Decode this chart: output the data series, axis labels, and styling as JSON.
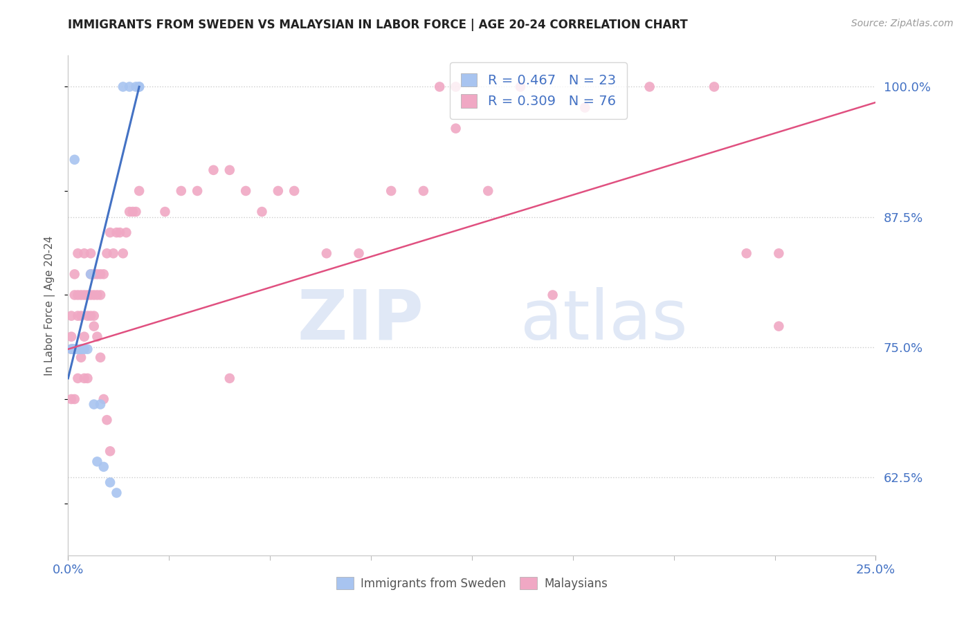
{
  "title": "IMMIGRANTS FROM SWEDEN VS MALAYSIAN IN LABOR FORCE | AGE 20-24 CORRELATION CHART",
  "source": "Source: ZipAtlas.com",
  "ylabel": "In Labor Force | Age 20-24",
  "xlim": [
    0.0,
    0.25
  ],
  "ylim": [
    0.55,
    1.03
  ],
  "yticks": [
    0.625,
    0.75,
    0.875,
    1.0
  ],
  "ytick_labels": [
    "62.5%",
    "75.0%",
    "87.5%",
    "100.0%"
  ],
  "sweden_color": "#a8c4f0",
  "malaysia_color": "#f0a8c4",
  "sweden_line_color": "#4472c4",
  "malaysia_line_color": "#e05080",
  "legend_sweden_text": "R = 0.467   N = 23",
  "legend_malaysia_text": "R = 0.309   N = 76",
  "axis_color": "#4472c4",
  "sweden_x": [
    0.001,
    0.0013,
    0.0015,
    0.0017,
    0.002,
    0.002,
    0.003,
    0.004,
    0.004,
    0.005,
    0.006,
    0.007,
    0.008,
    0.009,
    0.01,
    0.011,
    0.013,
    0.015,
    0.017,
    0.019,
    0.021,
    0.022,
    0.022
  ],
  "sweden_y": [
    0.748,
    0.748,
    0.748,
    0.748,
    0.93,
    0.748,
    0.748,
    0.748,
    0.748,
    0.748,
    0.748,
    0.82,
    0.695,
    0.64,
    0.695,
    0.635,
    0.62,
    0.61,
    1.0,
    1.0,
    1.0,
    1.0,
    1.0
  ],
  "malaysia_x": [
    0.001,
    0.001,
    0.001,
    0.002,
    0.002,
    0.003,
    0.003,
    0.003,
    0.004,
    0.004,
    0.005,
    0.005,
    0.005,
    0.006,
    0.006,
    0.007,
    0.007,
    0.007,
    0.008,
    0.008,
    0.008,
    0.009,
    0.009,
    0.01,
    0.01,
    0.011,
    0.012,
    0.013,
    0.014,
    0.015,
    0.016,
    0.017,
    0.018,
    0.019,
    0.02,
    0.021,
    0.022,
    0.03,
    0.035,
    0.04,
    0.045,
    0.05,
    0.055,
    0.06,
    0.065,
    0.07,
    0.08,
    0.09,
    0.1,
    0.11,
    0.115,
    0.12,
    0.13,
    0.14,
    0.15,
    0.16,
    0.18,
    0.2,
    0.21,
    0.22,
    0.001,
    0.002,
    0.003,
    0.004,
    0.005,
    0.006,
    0.007,
    0.008,
    0.009,
    0.01,
    0.011,
    0.012,
    0.013,
    0.05,
    0.12,
    0.22
  ],
  "malaysia_y": [
    0.748,
    0.76,
    0.78,
    0.8,
    0.82,
    0.78,
    0.8,
    0.84,
    0.78,
    0.8,
    0.76,
    0.8,
    0.84,
    0.78,
    0.8,
    0.8,
    0.82,
    0.84,
    0.78,
    0.8,
    0.82,
    0.8,
    0.82,
    0.8,
    0.82,
    0.82,
    0.84,
    0.86,
    0.84,
    0.86,
    0.86,
    0.84,
    0.86,
    0.88,
    0.88,
    0.88,
    0.9,
    0.88,
    0.9,
    0.9,
    0.92,
    0.92,
    0.9,
    0.88,
    0.9,
    0.9,
    0.84,
    0.84,
    0.9,
    0.9,
    1.0,
    1.0,
    0.9,
    1.0,
    0.8,
    0.98,
    1.0,
    1.0,
    0.84,
    0.84,
    0.7,
    0.7,
    0.72,
    0.74,
    0.72,
    0.72,
    0.78,
    0.77,
    0.76,
    0.74,
    0.7,
    0.68,
    0.65,
    0.72,
    0.96,
    0.77
  ]
}
